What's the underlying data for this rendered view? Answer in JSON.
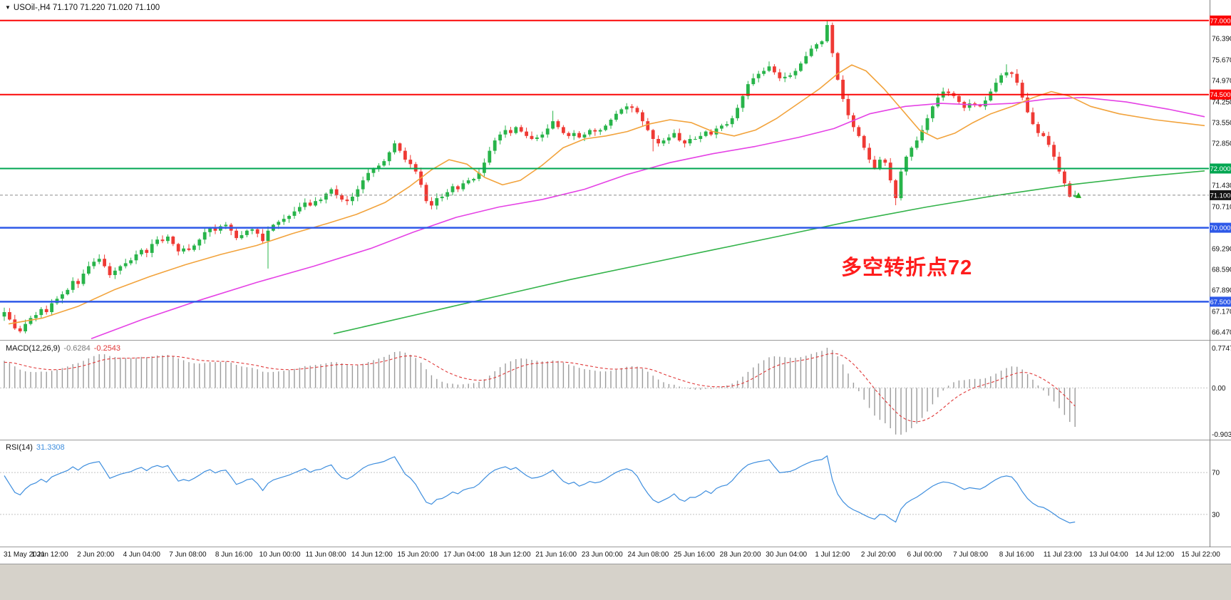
{
  "header": {
    "dropdown_icon": "▼",
    "title": "USOil-,H4 71.170 71.220 71.020 71.100"
  },
  "colors": {
    "bull": "#28b44a",
    "bear": "#ef3a34",
    "ma_fast": "#f2a33c",
    "ma_medium": "#e542e5",
    "ma_slow": "#33b34a",
    "macd_hist": "#9b9b9b",
    "macd_signal": "#e03838",
    "rsi_line": "#3e8ede",
    "level_red": "#fb0606",
    "level_green": "#00a651",
    "level_blue": "#2e59e8",
    "current_badge": "#141414",
    "annotation": "#ff1c1c",
    "axis_text": "#111111"
  },
  "chart_data": [
    {
      "type": "candlestick",
      "symbol": "USOil-",
      "timeframe": "H4",
      "ohlc": {
        "open": 71.17,
        "high": 71.22,
        "low": 71.02,
        "close": 71.1
      },
      "y_range": [
        66.21,
        77.55
      ],
      "y_axis_ticks": [
        76.39,
        75.67,
        74.97,
        74.25,
        73.55,
        72.85,
        71.43,
        70.71,
        69.29,
        68.59,
        67.89,
        67.17,
        66.47
      ],
      "levels": [
        {
          "price": 77.0,
          "label": "77.000",
          "color_key": "level_red",
          "width": 2
        },
        {
          "price": 74.5,
          "label": "74.500",
          "color_key": "level_red",
          "width": 2
        },
        {
          "price": 72.0,
          "label": "72.000",
          "color_key": "level_green",
          "width": 2
        },
        {
          "price": 70.0,
          "label": "70.000",
          "color_key": "level_blue",
          "width": 2.5
        },
        {
          "price": 67.5,
          "label": "67.500",
          "color_key": "level_blue",
          "width": 2.5
        }
      ],
      "current_price": 71.1,
      "current_price_label": "71.100",
      "annotation": {
        "text": "多空转折点72"
      },
      "first_open": 67.0,
      "daily_closes": [
        [
          67.15,
          66.9,
          66.6,
          66.5,
          66.75,
          66.95
        ],
        [
          67.05,
          67.25,
          67.15,
          67.45,
          67.6,
          67.75
        ],
        [
          67.9,
          68.2,
          68.1,
          68.45,
          68.7,
          68.85
        ],
        [
          68.95,
          68.7,
          68.4,
          68.55,
          68.7,
          68.8
        ],
        [
          68.9,
          69.1,
          69.25,
          69.15,
          69.45,
          69.6
        ],
        [
          69.55,
          69.7,
          69.45,
          69.2,
          69.3,
          69.25
        ],
        [
          69.4,
          69.6,
          69.85,
          70.0,
          69.9,
          70.05
        ],
        [
          70.1,
          69.9,
          69.65,
          69.75,
          69.9,
          69.95
        ],
        [
          69.8,
          69.55,
          69.9,
          70.1,
          70.2,
          70.3
        ],
        [
          70.4,
          70.55,
          70.7,
          70.85,
          70.75,
          70.9
        ],
        [
          70.95,
          71.15,
          71.3,
          71.1,
          70.95,
          70.9
        ],
        [
          71.05,
          71.3,
          71.6,
          71.85,
          72.0,
          72.1
        ],
        [
          72.25,
          72.55,
          72.85,
          72.6,
          72.3,
          72.15
        ],
        [
          71.9,
          71.45,
          70.9,
          70.75,
          71.0,
          71.05
        ],
        [
          71.2,
          71.4,
          71.3,
          71.5,
          71.6,
          71.65
        ],
        [
          71.85,
          72.2,
          72.6,
          72.95,
          73.15,
          73.3
        ],
        [
          73.2,
          73.4,
          73.25,
          73.1,
          73.0,
          73.05
        ],
        [
          73.15,
          73.35,
          73.6,
          73.4,
          73.2,
          73.1
        ],
        [
          73.2,
          73.05,
          73.15,
          73.3,
          73.25,
          73.3
        ],
        [
          73.45,
          73.65,
          73.85,
          74.0,
          74.1,
          74.05
        ],
        [
          73.9,
          73.6,
          73.3,
          73.0,
          72.85,
          72.95
        ],
        [
          73.05,
          73.2,
          72.95,
          72.85,
          73.0,
          73.0
        ],
        [
          73.1,
          73.25,
          73.15,
          73.35,
          73.45,
          73.5
        ],
        [
          73.7,
          74.05,
          74.45,
          74.85,
          75.05,
          75.2
        ],
        [
          75.3,
          75.45,
          75.25,
          75.05,
          75.1,
          75.15
        ],
        [
          75.3,
          75.55,
          75.8,
          76.05,
          76.2,
          76.3
        ],
        [
          76.85,
          75.9,
          75.0,
          74.35,
          73.8,
          73.4
        ],
        [
          73.1,
          72.7,
          72.3,
          72.0,
          72.3,
          72.2
        ],
        [
          71.6,
          71.0,
          71.9,
          72.4,
          72.7,
          72.95
        ],
        [
          73.3,
          73.7,
          74.1,
          74.4,
          74.6,
          74.55
        ],
        [
          74.45,
          74.25,
          74.05,
          74.2,
          74.15,
          74.1
        ],
        [
          74.3,
          74.6,
          74.9,
          75.15,
          75.25,
          75.2
        ],
        [
          74.9,
          74.4,
          73.9,
          73.5,
          73.2,
          73.1
        ],
        [
          72.8,
          72.4,
          71.9,
          71.5,
          71.05,
          71.1
        ]
      ],
      "spikes": [
        {
          "bar": 50,
          "low": 68.62
        },
        {
          "bar": 74,
          "high": 72.95
        },
        {
          "bar": 81,
          "low": 70.62
        },
        {
          "bar": 104,
          "high": 73.95
        },
        {
          "bar": 123,
          "low": 72.58
        },
        {
          "bar": 145,
          "high": 75.62
        },
        {
          "bar": 156,
          "high": 76.98
        },
        {
          "bar": 169,
          "low": 70.76
        },
        {
          "bar": 190,
          "high": 75.52
        },
        {
          "bar": 202,
          "low": 71.02
        }
      ],
      "ma_fast_anchors": [
        [
          12,
          66.75
        ],
        [
          60,
          66.95
        ],
        [
          110,
          67.35
        ],
        [
          160,
          67.9
        ],
        [
          210,
          68.35
        ],
        [
          260,
          68.75
        ],
        [
          310,
          69.1
        ],
        [
          360,
          69.4
        ],
        [
          410,
          69.8
        ],
        [
          460,
          70.15
        ],
        [
          500,
          70.45
        ],
        [
          540,
          70.85
        ],
        [
          575,
          71.4
        ],
        [
          605,
          71.95
        ],
        [
          630,
          72.3
        ],
        [
          655,
          72.15
        ],
        [
          680,
          71.7
        ],
        [
          705,
          71.45
        ],
        [
          730,
          71.6
        ],
        [
          760,
          72.1
        ],
        [
          790,
          72.7
        ],
        [
          820,
          73.0
        ],
        [
          850,
          73.1
        ],
        [
          880,
          73.25
        ],
        [
          910,
          73.5
        ],
        [
          940,
          73.65
        ],
        [
          970,
          73.55
        ],
        [
          1000,
          73.25
        ],
        [
          1030,
          73.1
        ],
        [
          1060,
          73.3
        ],
        [
          1090,
          73.7
        ],
        [
          1120,
          74.2
        ],
        [
          1150,
          74.7
        ],
        [
          1175,
          75.2
        ],
        [
          1195,
          75.5
        ],
        [
          1215,
          75.3
        ],
        [
          1240,
          74.7
        ],
        [
          1265,
          74.0
        ],
        [
          1290,
          73.3
        ],
        [
          1315,
          73.0
        ],
        [
          1340,
          73.2
        ],
        [
          1365,
          73.55
        ],
        [
          1390,
          73.85
        ],
        [
          1420,
          74.1
        ],
        [
          1450,
          74.4
        ],
        [
          1475,
          74.6
        ],
        [
          1500,
          74.45
        ],
        [
          1530,
          74.1
        ],
        [
          1570,
          73.85
        ],
        [
          1620,
          73.65
        ],
        [
          1690,
          73.45
        ]
      ],
      "ma_medium_anchors": [
        [
          128,
          66.25
        ],
        [
          200,
          66.9
        ],
        [
          280,
          67.55
        ],
        [
          360,
          68.15
        ],
        [
          440,
          68.7
        ],
        [
          520,
          69.3
        ],
        [
          580,
          69.85
        ],
        [
          640,
          70.35
        ],
        [
          700,
          70.7
        ],
        [
          760,
          70.95
        ],
        [
          820,
          71.3
        ],
        [
          880,
          71.8
        ],
        [
          940,
          72.2
        ],
        [
          1000,
          72.5
        ],
        [
          1060,
          72.75
        ],
        [
          1120,
          73.05
        ],
        [
          1170,
          73.35
        ],
        [
          1220,
          73.85
        ],
        [
          1270,
          74.1
        ],
        [
          1320,
          74.2
        ],
        [
          1370,
          74.15
        ],
        [
          1420,
          74.2
        ],
        [
          1470,
          74.35
        ],
        [
          1520,
          74.4
        ],
        [
          1580,
          74.25
        ],
        [
          1640,
          74.0
        ],
        [
          1690,
          73.75
        ]
      ],
      "ma_slow_anchors": [
        [
          468,
          66.42
        ],
        [
          600,
          67.15
        ],
        [
          700,
          67.7
        ],
        [
          800,
          68.25
        ],
        [
          900,
          68.75
        ],
        [
          1000,
          69.25
        ],
        [
          1100,
          69.75
        ],
        [
          1200,
          70.25
        ],
        [
          1300,
          70.7
        ],
        [
          1400,
          71.1
        ],
        [
          1500,
          71.45
        ],
        [
          1600,
          71.72
        ],
        [
          1690,
          71.92
        ]
      ],
      "x_labels": [
        "31 May 2021",
        "1 Jun 12:00",
        "2 Jun 20:00",
        "4 Jun 04:00",
        "7 Jun 08:00",
        "8 Jun 16:00",
        "10 Jun 00:00",
        "11 Jun 08:00",
        "14 Jun 12:00",
        "15 Jun 20:00",
        "17 Jun 04:00",
        "18 Jun 12:00",
        "21 Jun 16:00",
        "23 Jun 00:00",
        "24 Jun 08:00",
        "25 Jun 16:00",
        "28 Jun 20:00",
        "30 Jun 04:00",
        "1 Jul 12:00",
        "2 Jul 20:00",
        "6 Jul 00:00",
        "7 Jul 08:00",
        "8 Jul 16:00",
        "11 Jul 23:00",
        "13 Jul 04:00",
        "14 Jul 12:00",
        "15 Jul 22:00"
      ]
    },
    {
      "type": "macd",
      "name": "MACD(12,26,9)",
      "fast_ema": 12,
      "slow_ema": 26,
      "signal_ema": 9,
      "value_main": "-0.6284",
      "value_signal": "-0.2543",
      "y_tick_top": "0.7747",
      "y_tick_zero": "0.00",
      "y_tick_bottom": "-0.9034"
    },
    {
      "type": "rsi",
      "name": "RSI(14)",
      "period": 14,
      "value": "31.3308",
      "levels": [
        70,
        30
      ],
      "level_labels": [
        "70",
        "30"
      ]
    }
  ]
}
